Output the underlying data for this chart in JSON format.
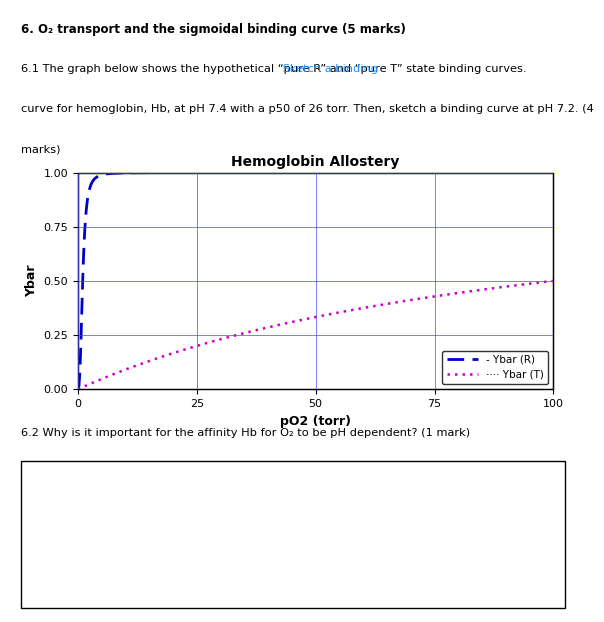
{
  "title": "Hemoglobin Allostery",
  "xlabel": "pO2 (torr)",
  "ylabel": "Ybar",
  "xlim": [
    0,
    100
  ],
  "ylim": [
    0.0,
    1.0
  ],
  "xticks": [
    0,
    25,
    50,
    75,
    100
  ],
  "yticks": [
    0.0,
    0.25,
    0.5,
    0.75,
    1.0
  ],
  "R_color": "#0000CC",
  "T_color": "#CC00CC",
  "R_p50": 1.0,
  "T_p50": 100.0,
  "R_n": 2.8,
  "T_n": 1.0,
  "legend_labels": [
    "- Ybar (R)",
    "···· Ybar (T)"
  ],
  "heading": "6. O₂ transport and the sigmoidal binding curve (5 marks)",
  "text1_normal": "6.1 The graph below shows the hypothetical “pure R” and “pure T” state binding curves.",
  "text1_blue": " Sketch a binding",
  "text1_cont": "curve for hemoglobin, Hb, at pH 7.4 with a p50 of 26 torr. Then, sketch a binding curve at pH 7.2. (4",
  "text1_last": "marks)",
  "text2": "6.2 Why is it important for the affinity Hb for O₂ to be pH dependent? (1 mark)",
  "bg_color": "#ffffff",
  "grid_color": "#4444FF",
  "box_border_color": "#000000"
}
